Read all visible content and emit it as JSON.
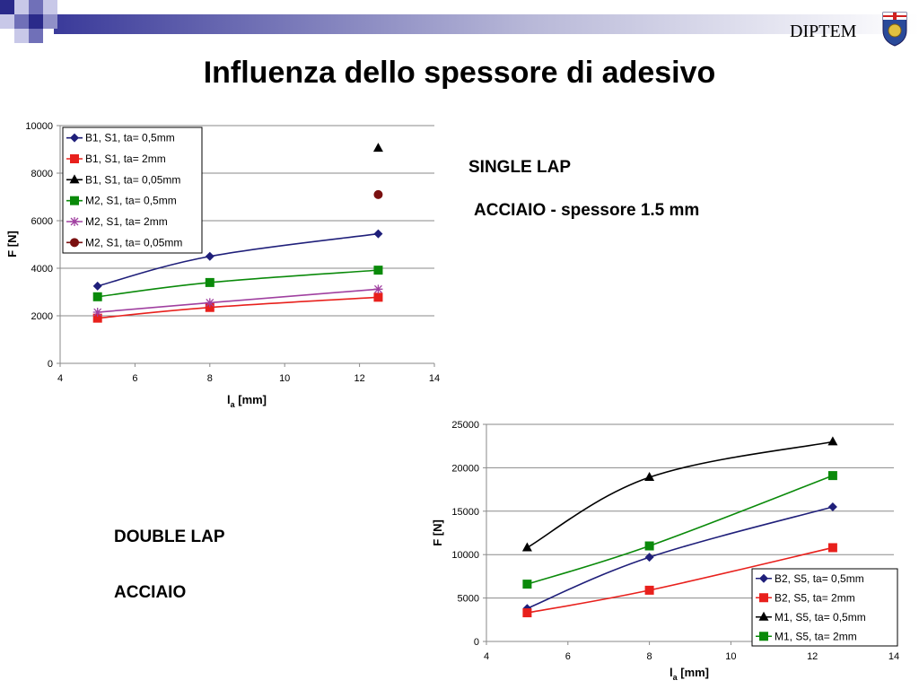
{
  "header": {
    "logo_text": "DIPTEM",
    "title": "Influenza dello spessore di adesivo"
  },
  "labels": {
    "single_lap": "SINGLE LAP",
    "single_lap_material": "ACCIAIO - spessore 1.5 mm",
    "double_lap": "DOUBLE LAP",
    "double_lap_material": "ACCIAIO"
  },
  "colors": {
    "navy": "#1f1f7a",
    "red": "#e8201c",
    "black": "#000000",
    "green": "#0a8a0a",
    "purple": "#a040a0",
    "darkred": "#7a1010"
  },
  "chart_data": [
    {
      "type": "line",
      "xlabel": "l_a [mm]",
      "xlabel_main": "l",
      "xlabel_sub": "a",
      "xlabel_rest": " [mm]",
      "ylabel": "F [N]",
      "xlim": [
        4,
        14
      ],
      "ylim": [
        0,
        10000
      ],
      "xticks": [
        4,
        6,
        8,
        10,
        12,
        14
      ],
      "yticks": [
        0,
        2000,
        4000,
        6000,
        8000,
        10000
      ],
      "grid": "horizontal",
      "legend": "top-left",
      "series": [
        {
          "name": "B1, S1, ta= 0,5mm",
          "color": "#1f1f7a",
          "marker": "diamond",
          "x": [
            5,
            8,
            12.5
          ],
          "y": [
            3250,
            4500,
            5450
          ]
        },
        {
          "name": "B1, S1, ta= 2mm",
          "color": "#e8201c",
          "marker": "square",
          "x": [
            5,
            8,
            12.5
          ],
          "y": [
            1900,
            2350,
            2780
          ]
        },
        {
          "name": "B1, S1, ta= 0,05mm",
          "color": "#000000",
          "marker": "triangle",
          "x": [
            12.5
          ],
          "y": [
            9050
          ]
        },
        {
          "name": "M2, S1, ta= 0,5mm",
          "color": "#0a8a0a",
          "marker": "square",
          "x": [
            5,
            8,
            12.5
          ],
          "y": [
            2800,
            3400,
            3920
          ]
        },
        {
          "name": "M2, S1, ta= 2mm",
          "color": "#a040a0",
          "marker": "star",
          "x": [
            5,
            8,
            12.5
          ],
          "y": [
            2150,
            2550,
            3120
          ]
        },
        {
          "name": "M2, S1, ta= 0,05mm",
          "color": "#7a1010",
          "marker": "circle",
          "x": [
            12.5
          ],
          "y": [
            7100
          ]
        }
      ]
    },
    {
      "type": "line",
      "xlabel": "l_a [mm]",
      "xlabel_main": "l",
      "xlabel_sub": "a",
      "xlabel_rest": " [mm]",
      "ylabel": "F [N]",
      "xlim": [
        4,
        14
      ],
      "ylim": [
        0,
        25000
      ],
      "xticks": [
        4,
        6,
        8,
        10,
        12,
        14
      ],
      "yticks": [
        0,
        5000,
        10000,
        15000,
        20000,
        25000
      ],
      "grid": "horizontal",
      "legend": "bottom-right",
      "series": [
        {
          "name": "B2, S5, ta= 0,5mm",
          "color": "#1f1f7a",
          "marker": "diamond",
          "x": [
            5,
            8,
            12.5
          ],
          "y": [
            3800,
            9700,
            15500
          ]
        },
        {
          "name": "B2, S5, ta= 2mm",
          "color": "#e8201c",
          "marker": "square",
          "x": [
            5,
            8,
            12.5
          ],
          "y": [
            3300,
            5900,
            10800
          ]
        },
        {
          "name": "M1, S5, ta= 0,5mm",
          "color": "#000000",
          "marker": "triangle",
          "x": [
            5,
            8,
            12.5
          ],
          "y": [
            10800,
            18900,
            23000
          ]
        },
        {
          "name": "M1, S5, ta= 2mm",
          "color": "#0a8a0a",
          "marker": "square",
          "x": [
            5,
            8,
            12.5
          ],
          "y": [
            6600,
            11000,
            19100
          ]
        }
      ]
    }
  ]
}
